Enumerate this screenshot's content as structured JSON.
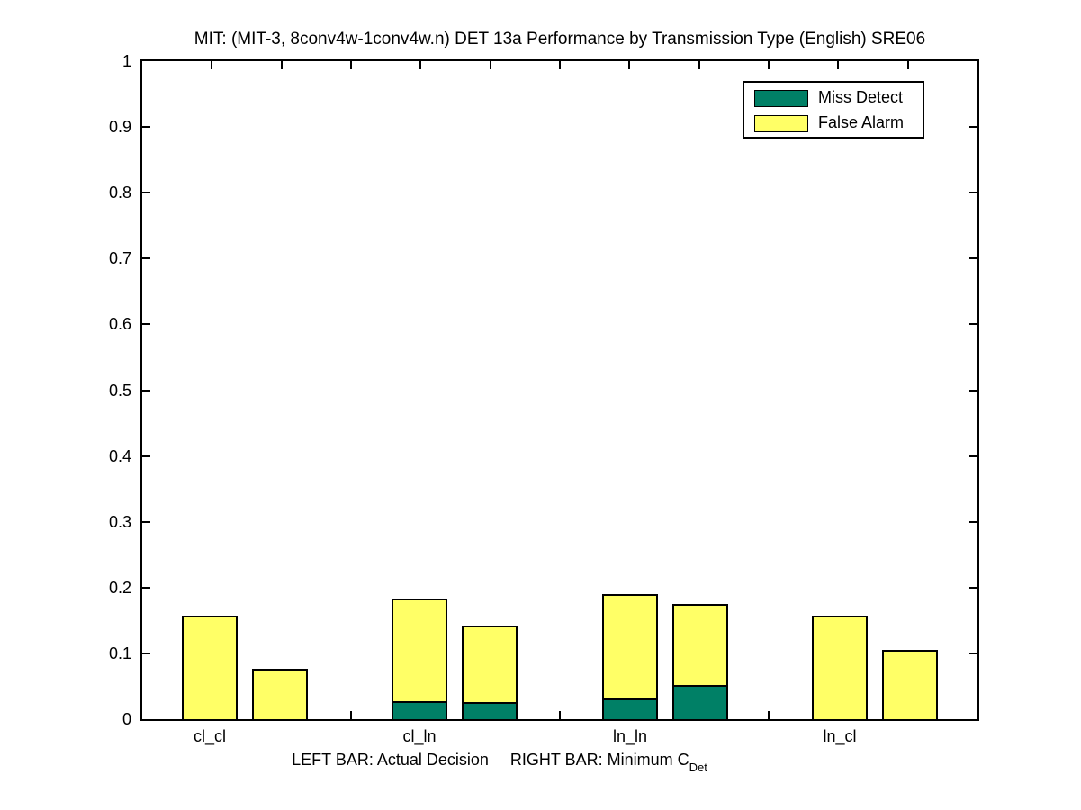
{
  "figure": {
    "title": "MIT: (MIT-3, 8conv4w-1conv4w.n) DET 13a Performance by Transmission Type (English) SRE06",
    "xlabel_left": "LEFT BAR: Actual Decision",
    "xlabel_right": "RIGHT BAR: Minimum C",
    "xlabel_subscript": "Det"
  },
  "legend": {
    "position": "top-right",
    "items": [
      {
        "label": "Miss Detect",
        "color": "#008066"
      },
      {
        "label": "False Alarm",
        "color": "#ffff66"
      }
    ]
  },
  "chart_data": {
    "type": "bar",
    "stacked": true,
    "grid": false,
    "title": "MIT: (MIT-3, 8conv4w-1conv4w.n) DET 13a Performance by Transmission Type (English) SRE06",
    "xlabel": "LEFT BAR: Actual Decision    RIGHT BAR: Minimum C_Det",
    "ylabel": "",
    "ylim": [
      0,
      1
    ],
    "yticks": [
      "0",
      "0.1",
      "0.2",
      "0.3",
      "0.4",
      "0.5",
      "0.6",
      "0.7",
      "0.8",
      "0.9",
      "1"
    ],
    "categories": [
      "cl_cl",
      "cl_ln",
      "ln_ln",
      "ln_cl"
    ],
    "bars_per_category": [
      "Actual Decision",
      "Minimum C_Det"
    ],
    "series_colors": {
      "miss_detect": "#008066",
      "false_alarm": "#ffff66"
    },
    "groups": [
      {
        "category": "cl_cl",
        "actual": {
          "miss": 0.0,
          "false_alarm": 0.157,
          "total": 0.157
        },
        "minimum": {
          "miss": 0.0,
          "false_alarm": 0.077,
          "total": 0.077
        }
      },
      {
        "category": "cl_ln",
        "actual": {
          "miss": 0.027,
          "false_alarm": 0.156,
          "total": 0.183
        },
        "minimum": {
          "miss": 0.026,
          "false_alarm": 0.116,
          "total": 0.142
        }
      },
      {
        "category": "ln_ln",
        "actual": {
          "miss": 0.032,
          "false_alarm": 0.158,
          "total": 0.19
        },
        "minimum": {
          "miss": 0.052,
          "false_alarm": 0.123,
          "total": 0.175
        }
      },
      {
        "category": "ln_cl",
        "actual": {
          "miss": 0.0,
          "false_alarm": 0.157,
          "total": 0.157
        },
        "minimum": {
          "miss": 0.0,
          "false_alarm": 0.106,
          "total": 0.106
        }
      }
    ]
  }
}
